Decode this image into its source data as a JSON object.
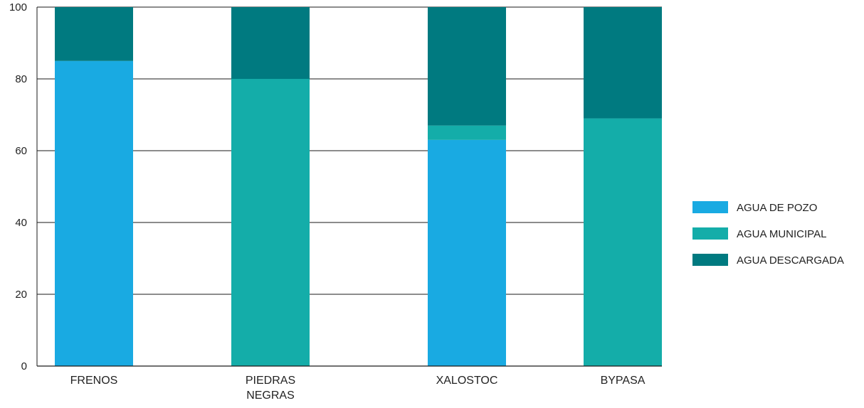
{
  "chart_data": {
    "type": "bar",
    "stacked": true,
    "categories": [
      "FRENOS",
      "PIEDRAS NEGRAS",
      "XALOSTOC",
      "BYPASA"
    ],
    "category_label_lines": [
      [
        "FRENOS"
      ],
      [
        "PIEDRAS",
        "NEGRAS"
      ],
      [
        "XALOSTOC"
      ],
      [
        "BYPASA"
      ]
    ],
    "series": [
      {
        "name": "AGUA DE POZO",
        "color": "#19aae2",
        "values": [
          85,
          0,
          63,
          0
        ]
      },
      {
        "name": "AGUA MUNICIPAL",
        "color": "#14ada9",
        "values": [
          0,
          80,
          4,
          69
        ]
      },
      {
        "name": "AGUA DESCARGADA",
        "color": "#007a80",
        "values": [
          15,
          20,
          33,
          31
        ]
      }
    ],
    "ylim": [
      0,
      100
    ],
    "yticks": [
      0,
      20,
      40,
      60,
      80,
      100
    ],
    "ytick_labels": [
      "0",
      "20",
      "40",
      "60",
      "80",
      "100"
    ],
    "grid": true,
    "legend_position": "right"
  }
}
